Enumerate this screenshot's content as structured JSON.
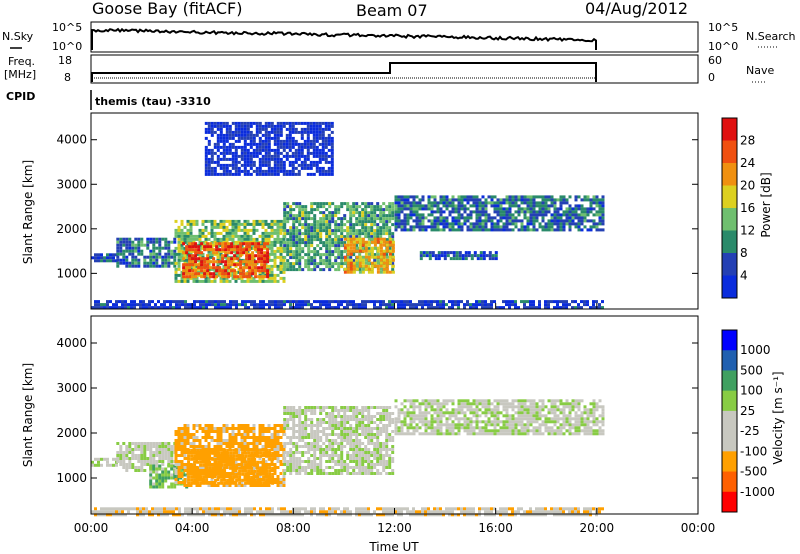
{
  "header": {
    "station": "Goose Bay (fitACF)",
    "beam": "Beam 07",
    "date": "04/Aug/2012"
  },
  "noise_panel": {
    "left_label": "N.Sky",
    "left_ticks": [
      "10^5",
      "10^0"
    ],
    "right_ticks": [
      "10^5",
      "10^0"
    ],
    "right_label": "N.Search"
  },
  "freq_panel": {
    "left_label_1": "Freq.",
    "left_label_2": "[MHz]",
    "left_ticks": [
      "18",
      "8"
    ],
    "right_ticks": [
      "60",
      "0"
    ],
    "right_label": "Nave"
  },
  "cpid_panel": {
    "label": "CPID",
    "mode": "themis (tau)  -3310"
  },
  "colors": {
    "power": [
      "#0a2cdc",
      "#2440b4",
      "#2a8a6a",
      "#6fbf6f",
      "#dcd020",
      "#f09010",
      "#f05010",
      "#e01010"
    ],
    "velocity": [
      "#ff0000",
      "#ff6000",
      "#ffa000",
      "#c8c8c0",
      "#c8c8c0",
      "#88cc44",
      "#40a060",
      "#2060b0",
      "#0000ff"
    ]
  },
  "chart_data": [
    {
      "type": "heatmap",
      "name": "power",
      "ylabel": "Slant Range [km]",
      "xlabel": "Time UT",
      "x_ticks": [
        "00:00",
        "04:00",
        "08:00",
        "12:00",
        "16:00",
        "20:00",
        "00:00"
      ],
      "y_ticks": [
        "1000",
        "2000",
        "3000",
        "4000"
      ],
      "xlim": [
        0,
        24
      ],
      "ylim": [
        200,
        4600
      ],
      "colorbar": {
        "label": "Power [dB]",
        "ticks": [
          "4",
          "8",
          "12",
          "16",
          "20",
          "24",
          "28"
        ],
        "range": [
          0,
          32
        ]
      },
      "echo_bands": [
        {
          "t0": 0.0,
          "t1": 1.0,
          "r0": 1250,
          "r1": 1450,
          "level": 5
        },
        {
          "t0": 1.0,
          "t1": 3.3,
          "r0": 1150,
          "r1": 1800,
          "level": 8
        },
        {
          "t0": 3.3,
          "t1": 7.6,
          "r0": 850,
          "r1": 2200,
          "level": 14
        },
        {
          "t0": 3.6,
          "t1": 7.0,
          "r0": 900,
          "r1": 1700,
          "level": 26
        },
        {
          "t0": 7.6,
          "t1": 11.9,
          "r0": 1100,
          "r1": 2600,
          "level": 12
        },
        {
          "t0": 10.0,
          "t1": 11.9,
          "r0": 1000,
          "r1": 1800,
          "level": 20
        },
        {
          "t0": 12.0,
          "t1": 20.2,
          "r0": 2000,
          "r1": 2750,
          "level": 8
        },
        {
          "t0": 13.0,
          "t1": 16.0,
          "r0": 1300,
          "r1": 1500,
          "level": 6
        },
        {
          "t0": 0.0,
          "t1": 20.2,
          "r0": 200,
          "r1": 400,
          "level": 4
        },
        {
          "t0": 4.5,
          "t1": 9.5,
          "r0": 3200,
          "r1": 4400,
          "level": 3
        }
      ]
    },
    {
      "type": "heatmap",
      "name": "velocity",
      "ylabel": "Slant Range [km]",
      "xlabel": "Time UT",
      "x_ticks": [
        "00:00",
        "04:00",
        "08:00",
        "12:00",
        "16:00",
        "20:00",
        "00:00"
      ],
      "y_ticks": [
        "1000",
        "2000",
        "3000",
        "4000"
      ],
      "xlim": [
        0,
        24
      ],
      "ylim": [
        200,
        4600
      ],
      "colorbar": {
        "label": "Velocity [m s⁻¹]",
        "ticks": [
          "1000",
          "500",
          "100",
          "25",
          "-25",
          "-100",
          "-500",
          "-1000"
        ],
        "range": [
          -1000,
          1000
        ]
      },
      "echo_bands": [
        {
          "t0": 0.0,
          "t1": 1.0,
          "r0": 1250,
          "r1": 1450,
          "velocity": 0
        },
        {
          "t0": 1.0,
          "t1": 3.3,
          "r0": 1150,
          "r1": 1800,
          "velocity": 0
        },
        {
          "t0": 2.3,
          "t1": 3.8,
          "r0": 800,
          "r1": 1300,
          "velocity": 80
        },
        {
          "t0": 3.3,
          "t1": 7.6,
          "r0": 850,
          "r1": 2200,
          "velocity": -150
        },
        {
          "t0": 3.8,
          "t1": 7.2,
          "r0": 900,
          "r1": 1650,
          "velocity": -350
        },
        {
          "t0": 7.6,
          "t1": 11.9,
          "r0": 1100,
          "r1": 2600,
          "velocity": 0
        },
        {
          "t0": 12.0,
          "t1": 20.2,
          "r0": 2000,
          "r1": 2750,
          "velocity": 0
        },
        {
          "t0": 0.0,
          "t1": 20.2,
          "r0": 200,
          "r1": 350,
          "velocity": -60
        }
      ]
    }
  ]
}
